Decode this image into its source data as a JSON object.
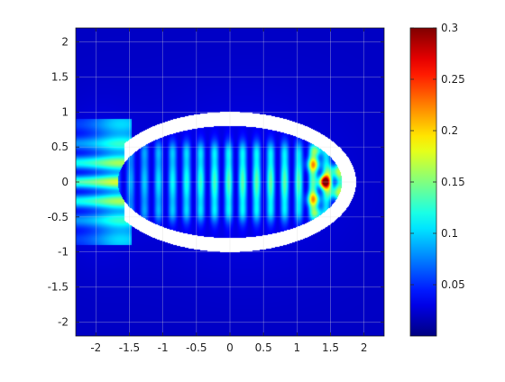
{
  "chart_data": {
    "type": "heatmap",
    "title": "",
    "xlabel": "",
    "ylabel": "",
    "xlim": [
      -2.3,
      2.3
    ],
    "ylim": [
      -2.2,
      2.2
    ],
    "x_ticks": [
      -2,
      -1.5,
      -1,
      -0.5,
      0,
      0.5,
      1,
      1.5,
      2
    ],
    "x_tick_labels": [
      "-2",
      "-1.5",
      "-1",
      "-0.5",
      "0",
      "0.5",
      "1",
      "1.5",
      "2"
    ],
    "y_ticks": [
      2,
      1.5,
      1,
      0.5,
      0,
      -0.5,
      -1,
      -1.5,
      -2
    ],
    "y_tick_labels": [
      "2",
      "1.5",
      "1",
      "0.5",
      "0",
      "-0.5",
      "-1",
      "-1.5",
      "-2"
    ],
    "colorbar": {
      "colormap": "jet",
      "range": [
        0,
        0.3
      ],
      "ticks": [
        0.3,
        0.25,
        0.2,
        0.15,
        0.1,
        0.05
      ],
      "tick_labels": [
        "0.3",
        "0.25",
        "0.2",
        "0.15",
        "0.1",
        "0.05"
      ]
    },
    "grid": true,
    "data_domain": {
      "x": [
        -2.2,
        2.2
      ],
      "y": [
        -2.2,
        2.2
      ]
    },
    "obstacle": {
      "shape": "elliptical ring with opening on left",
      "center": [
        0,
        0
      ],
      "outer_semi_axes": [
        1.8,
        1.0
      ],
      "inner_semi_axes": [
        1.6,
        0.8
      ],
      "opening_x_left_of": -1.5
    },
    "field_features": {
      "background_level": 0.02,
      "peak_value": 0.3,
      "peak_location": [
        1.35,
        0
      ],
      "interior_fringe_spacing": 0.1
    }
  },
  "colors": {
    "background": "#ffffff",
    "axis": "#262626",
    "grid": "#d9d9d9",
    "obstacle": "#ffffff"
  }
}
